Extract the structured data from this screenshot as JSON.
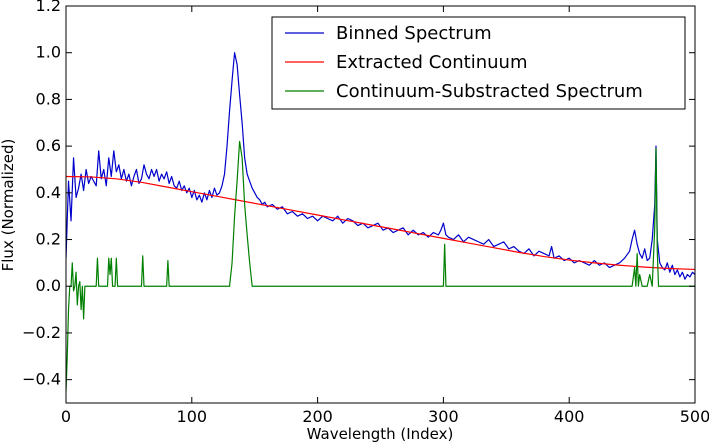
{
  "chart_data": {
    "type": "line",
    "title": "",
    "xlabel": "Wavelength (Index)",
    "ylabel": "Flux (Normalized)",
    "xlim": [
      0,
      500
    ],
    "ylim": [
      -0.5,
      1.2
    ],
    "grid": false,
    "legend_position": "top-right",
    "x_ticks": [
      0,
      100,
      200,
      300,
      400,
      500
    ],
    "x_tick_labels": [
      "0",
      "100",
      "200",
      "300",
      "400",
      "500"
    ],
    "y_ticks": [
      -0.4,
      -0.2,
      0.0,
      0.2,
      0.4,
      0.6,
      0.8,
      1.0,
      1.2
    ],
    "y_tick_labels": [
      "−0.4",
      "−0.2",
      "0.0",
      "0.2",
      "0.4",
      "0.6",
      "0.8",
      "1.0",
      "1.2"
    ],
    "series": [
      {
        "name": "Binned Spectrum",
        "color": "#0000cc",
        "x": [
          0,
          2,
          4,
          6,
          8,
          10,
          12,
          14,
          16,
          18,
          20,
          22,
          24,
          26,
          28,
          30,
          32,
          34,
          36,
          38,
          40,
          42,
          44,
          46,
          48,
          50,
          52,
          54,
          56,
          58,
          60,
          62,
          64,
          66,
          68,
          70,
          72,
          74,
          76,
          78,
          80,
          82,
          84,
          86,
          88,
          90,
          92,
          94,
          96,
          98,
          100,
          102,
          104,
          106,
          108,
          110,
          112,
          114,
          116,
          118,
          120,
          122,
          124,
          126,
          128,
          130,
          132,
          134,
          136,
          138,
          140,
          142,
          144,
          146,
          148,
          150,
          152,
          154,
          156,
          158,
          160,
          164,
          168,
          172,
          176,
          180,
          184,
          188,
          192,
          196,
          200,
          204,
          208,
          212,
          216,
          220,
          224,
          228,
          232,
          236,
          240,
          244,
          248,
          252,
          256,
          260,
          264,
          268,
          272,
          276,
          280,
          284,
          288,
          292,
          296,
          298,
          300,
          302,
          304,
          308,
          312,
          316,
          320,
          324,
          328,
          332,
          336,
          340,
          344,
          348,
          352,
          356,
          360,
          364,
          368,
          372,
          376,
          380,
          384,
          386,
          388,
          392,
          396,
          400,
          404,
          408,
          412,
          416,
          420,
          424,
          428,
          432,
          436,
          440,
          444,
          448,
          450,
          452,
          454,
          456,
          458,
          460,
          462,
          464,
          466,
          468,
          469,
          470,
          472,
          474,
          476,
          478,
          480,
          482,
          484,
          486,
          488,
          490,
          492,
          494,
          496,
          498,
          500
        ],
        "y": [
          0.12,
          0.45,
          0.28,
          0.55,
          0.38,
          0.42,
          0.48,
          0.41,
          0.5,
          0.44,
          0.47,
          0.45,
          0.43,
          0.58,
          0.46,
          0.5,
          0.43,
          0.55,
          0.47,
          0.58,
          0.49,
          0.52,
          0.46,
          0.5,
          0.45,
          0.48,
          0.43,
          0.47,
          0.5,
          0.44,
          0.46,
          0.52,
          0.48,
          0.46,
          0.5,
          0.47,
          0.5,
          0.45,
          0.48,
          0.46,
          0.49,
          0.44,
          0.47,
          0.43,
          0.42,
          0.45,
          0.41,
          0.43,
          0.4,
          0.42,
          0.38,
          0.41,
          0.37,
          0.39,
          0.36,
          0.4,
          0.37,
          0.41,
          0.38,
          0.42,
          0.39,
          0.4,
          0.43,
          0.48,
          0.6,
          0.75,
          0.88,
          1.0,
          0.95,
          0.82,
          0.7,
          0.55,
          0.48,
          0.45,
          0.42,
          0.4,
          0.38,
          0.37,
          0.35,
          0.36,
          0.34,
          0.35,
          0.33,
          0.34,
          0.31,
          0.32,
          0.3,
          0.31,
          0.29,
          0.3,
          0.28,
          0.3,
          0.29,
          0.28,
          0.3,
          0.27,
          0.29,
          0.28,
          0.26,
          0.27,
          0.25,
          0.26,
          0.27,
          0.24,
          0.25,
          0.23,
          0.24,
          0.25,
          0.22,
          0.24,
          0.22,
          0.23,
          0.21,
          0.23,
          0.22,
          0.24,
          0.27,
          0.22,
          0.21,
          0.2,
          0.22,
          0.19,
          0.21,
          0.2,
          0.19,
          0.18,
          0.2,
          0.17,
          0.18,
          0.19,
          0.16,
          0.17,
          0.15,
          0.14,
          0.16,
          0.13,
          0.15,
          0.14,
          0.13,
          0.17,
          0.12,
          0.13,
          0.11,
          0.12,
          0.1,
          0.11,
          0.1,
          0.09,
          0.11,
          0.09,
          0.1,
          0.08,
          0.09,
          0.1,
          0.12,
          0.15,
          0.2,
          0.24,
          0.18,
          0.14,
          0.12,
          0.16,
          0.11,
          0.12,
          0.2,
          0.35,
          0.6,
          0.2,
          0.1,
          0.08,
          0.07,
          0.1,
          0.06,
          0.09,
          0.05,
          0.07,
          0.04,
          0.06,
          0.03,
          0.05,
          0.04,
          0.06,
          0.05
        ]
      },
      {
        "name": "Extracted Continuum",
        "color": "#ff0000",
        "x": [
          0,
          20,
          40,
          60,
          80,
          100,
          120,
          140,
          160,
          180,
          200,
          220,
          240,
          260,
          280,
          300,
          320,
          340,
          360,
          380,
          400,
          420,
          440,
          460,
          480,
          500
        ],
        "y": [
          0.47,
          0.468,
          0.46,
          0.445,
          0.425,
          0.405,
          0.385,
          0.365,
          0.345,
          0.325,
          0.305,
          0.285,
          0.265,
          0.245,
          0.225,
          0.205,
          0.185,
          0.165,
          0.145,
          0.127,
          0.112,
          0.1,
          0.09,
          0.082,
          0.076,
          0.072
        ]
      },
      {
        "name": "Continuum-Substracted Spectrum",
        "color": "#008000",
        "x": [
          0,
          1,
          2,
          3,
          4,
          5,
          6,
          7,
          8,
          9,
          10,
          11,
          12,
          13,
          14,
          15,
          16,
          20,
          24,
          25,
          26,
          27,
          30,
          33,
          34,
          35,
          36,
          37,
          39,
          40,
          41,
          42,
          45,
          60,
          61,
          62,
          63,
          80,
          81,
          82,
          83,
          130,
          132,
          134,
          136,
          138,
          140,
          142,
          144,
          146,
          148,
          150,
          300,
          301,
          302,
          303,
          450,
          452,
          453,
          454,
          455,
          456,
          458,
          460,
          462,
          464,
          466,
          468,
          469,
          470,
          471,
          472,
          475,
          500
        ],
        "y": [
          -0.45,
          -0.3,
          -0.1,
          0.0,
          0.0,
          0.1,
          -0.02,
          0.0,
          0.06,
          -0.08,
          0.0,
          0.02,
          -0.1,
          0.0,
          -0.14,
          0.0,
          0.0,
          0.0,
          0.0,
          0.12,
          0.0,
          0.0,
          0.0,
          0.0,
          0.12,
          0.05,
          0.12,
          0.0,
          0.0,
          0.12,
          0.0,
          0.0,
          0.0,
          0.0,
          0.13,
          0.0,
          0.0,
          0.0,
          0.11,
          0.0,
          0.0,
          0.0,
          0.1,
          0.3,
          0.45,
          0.62,
          0.55,
          0.35,
          0.22,
          0.1,
          0.0,
          0.0,
          0.0,
          0.18,
          0.0,
          0.0,
          0.0,
          0.08,
          0.0,
          0.14,
          0.0,
          0.05,
          0.0,
          0.0,
          0.0,
          0.05,
          0.0,
          0.25,
          0.59,
          0.15,
          0.0,
          0.0,
          0.0,
          0.0
        ]
      }
    ]
  }
}
